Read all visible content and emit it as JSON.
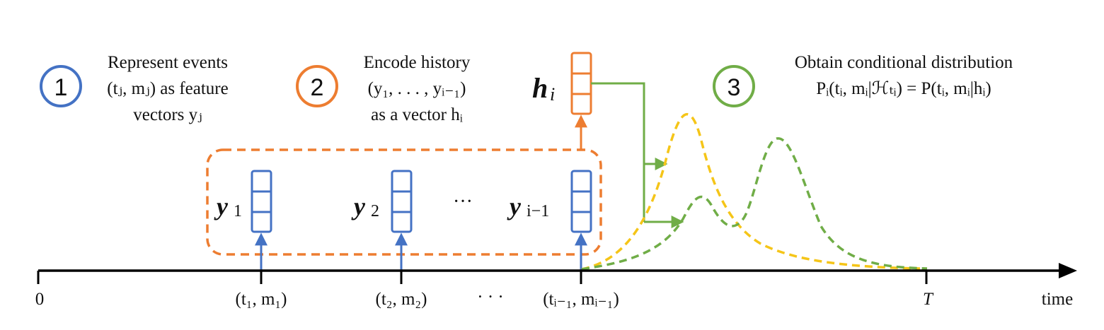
{
  "steps": [
    {
      "number": "1",
      "lines": [
        "Represent events",
        "(tⱼ, mⱼ) as feature",
        "vectors yⱼ"
      ],
      "color": "#4472C4"
    },
    {
      "number": "2",
      "lines": [
        "Encode history",
        "(y₁, . . . , yᵢ₋₁)",
        "as a vector hᵢ"
      ],
      "color": "#ED7D31"
    },
    {
      "number": "3",
      "lines": [
        "Obtain conditional distribution",
        "Pᵢ(tᵢ, mᵢ|ℋₜᵢ) = P(tᵢ, mᵢ|hᵢ)"
      ],
      "color": "#70AD47"
    }
  ],
  "vectors": {
    "y1": "y",
    "y1_sub": "1",
    "y2": "y",
    "y2_sub": "2",
    "dots": "···",
    "yi1": "y",
    "yi1_sub": "i−1",
    "h": "h",
    "h_sub": "i"
  },
  "timeline": {
    "origin": "0",
    "events": [
      "(t₁, m₁)",
      "(t₂, m₂)",
      "· · ·",
      "(tᵢ₋₁, mᵢ₋₁)"
    ],
    "end": "T",
    "axis_label": "time"
  },
  "colors": {
    "blue": "#4472C4",
    "orange": "#ED7D31",
    "green": "#70AD47",
    "yellow": "#F5C518",
    "axis": "#000000"
  }
}
